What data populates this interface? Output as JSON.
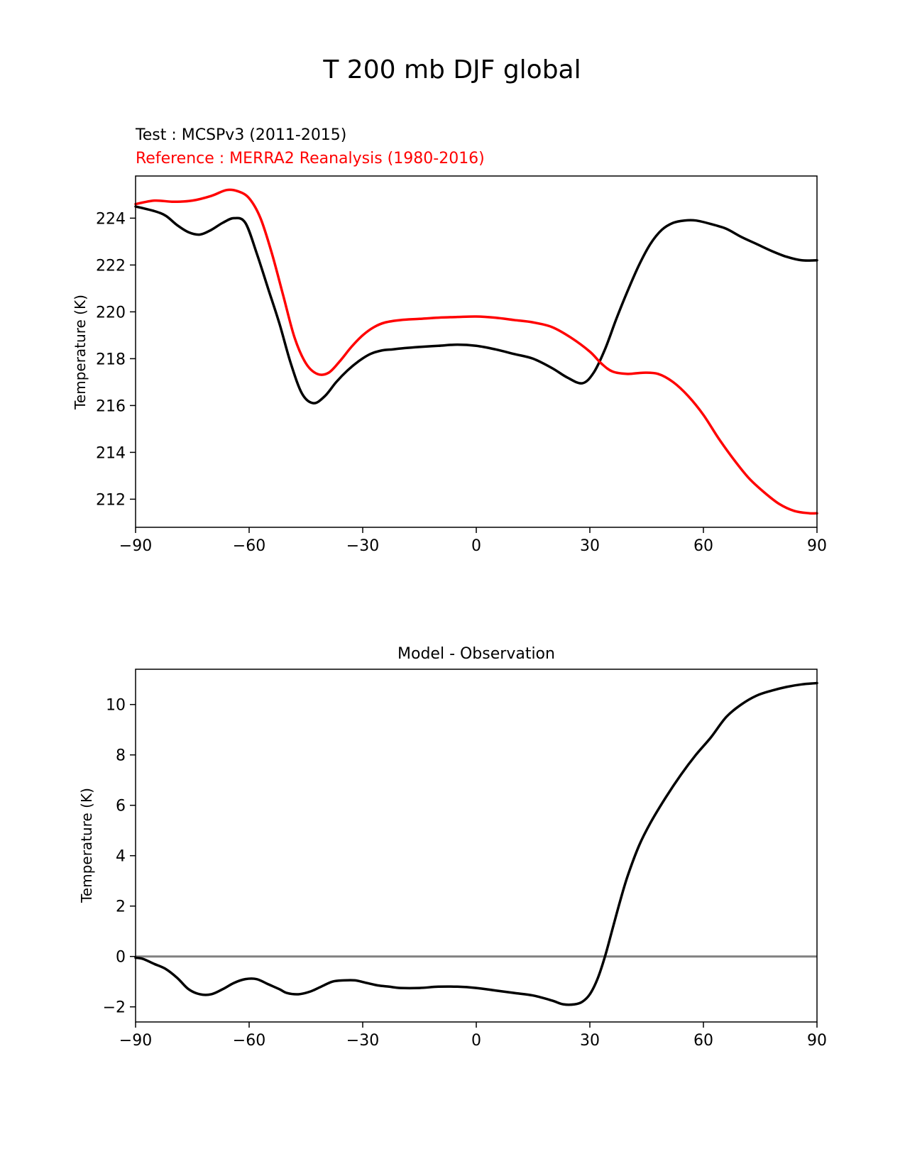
{
  "figure": {
    "title": "T 200 mb DJF global"
  },
  "colors": {
    "test": "#000000",
    "reference": "#ff0000",
    "zero_line": "#808080"
  },
  "chart_data": [
    {
      "type": "line",
      "title": "",
      "legend_lines": {
        "test": "Test : MCSPv3 (2011-2015)",
        "reference": "Reference : MERRA2 Reanalysis (1980-2016)"
      },
      "xlabel": "",
      "ylabel": "Temperature (K)",
      "xlim": [
        -90,
        90
      ],
      "ylim": [
        210.8,
        225.8
      ],
      "xticks": [
        -90,
        -60,
        -30,
        0,
        30,
        60,
        90
      ],
      "xtick_labels": [
        "−90",
        "−60",
        "−30",
        "0",
        "30",
        "60",
        "90"
      ],
      "yticks": [
        212,
        214,
        216,
        218,
        220,
        222,
        224
      ],
      "ytick_labels": [
        "212",
        "214",
        "216",
        "218",
        "220",
        "222",
        "224"
      ],
      "grid": false,
      "series": [
        {
          "name": "Test : MCSPv3 (2011-2015)",
          "color": "#000000",
          "x": [
            -90,
            -85,
            -82,
            -79,
            -76,
            -73,
            -70,
            -67,
            -64,
            -61,
            -58,
            -55,
            -52,
            -49,
            -46,
            -43,
            -40,
            -37,
            -34,
            -31,
            -28,
            -25,
            -22,
            -19,
            -15,
            -10,
            -5,
            0,
            5,
            10,
            15,
            20,
            24,
            28,
            31,
            34,
            37,
            40,
            43,
            46,
            49,
            52,
            55,
            58,
            62,
            66,
            70,
            74,
            78,
            82,
            86,
            90
          ],
          "y": [
            224.5,
            224.3,
            224.1,
            223.7,
            223.4,
            223.3,
            223.5,
            223.8,
            224.0,
            223.8,
            222.5,
            221.0,
            219.5,
            217.8,
            216.5,
            216.1,
            216.4,
            217.0,
            217.5,
            217.9,
            218.2,
            218.35,
            218.4,
            218.45,
            218.5,
            218.55,
            218.6,
            218.55,
            218.4,
            218.2,
            218.0,
            217.6,
            217.2,
            216.95,
            217.4,
            218.4,
            219.7,
            220.9,
            222.0,
            222.9,
            223.5,
            223.8,
            223.9,
            223.9,
            223.75,
            223.55,
            223.2,
            222.9,
            222.6,
            222.35,
            222.2,
            222.2
          ]
        },
        {
          "name": "Reference : MERRA2 Reanalysis (1980-2016)",
          "color": "#ff0000",
          "x": [
            -90,
            -85,
            -80,
            -75,
            -70,
            -66,
            -63,
            -60,
            -57,
            -54,
            -51,
            -48,
            -45,
            -42,
            -39,
            -36,
            -33,
            -30,
            -27,
            -24,
            -20,
            -15,
            -10,
            -5,
            0,
            5,
            10,
            15,
            20,
            25,
            30,
            33,
            36,
            40,
            44,
            48,
            52,
            56,
            60,
            64,
            68,
            72,
            76,
            80,
            84,
            88,
            90
          ],
          "y": [
            224.6,
            224.75,
            224.7,
            224.75,
            224.95,
            225.2,
            225.15,
            224.85,
            224.0,
            222.5,
            220.7,
            218.9,
            217.8,
            217.35,
            217.4,
            217.9,
            218.5,
            219.0,
            219.35,
            219.55,
            219.65,
            219.7,
            219.75,
            219.78,
            219.8,
            219.75,
            219.65,
            219.55,
            219.35,
            218.9,
            218.3,
            217.8,
            217.45,
            217.35,
            217.4,
            217.35,
            217.0,
            216.4,
            215.6,
            214.6,
            213.7,
            212.9,
            212.3,
            211.8,
            211.5,
            211.4,
            211.4
          ]
        }
      ]
    },
    {
      "type": "line",
      "title": "Model - Observation",
      "xlabel": "",
      "ylabel": "Temperature (K)",
      "xlim": [
        -90,
        90
      ],
      "ylim": [
        -2.6,
        11.4
      ],
      "xticks": [
        -90,
        -60,
        -30,
        0,
        30,
        60,
        90
      ],
      "xtick_labels": [
        "−90",
        "−60",
        "−30",
        "0",
        "30",
        "60",
        "90"
      ],
      "yticks": [
        -2,
        0,
        2,
        4,
        6,
        8,
        10
      ],
      "ytick_labels": [
        "−2",
        "0",
        "2",
        "4",
        "6",
        "8",
        "10"
      ],
      "grid": false,
      "zero_line": 0,
      "series": [
        {
          "name": "",
          "color": "#000000",
          "x": [
            -90,
            -88,
            -85,
            -82,
            -79,
            -76,
            -73,
            -70,
            -67,
            -64,
            -61,
            -58,
            -55,
            -52,
            -50,
            -47,
            -44,
            -41,
            -38,
            -35,
            -32,
            -29,
            -26,
            -23,
            -20,
            -15,
            -10,
            -5,
            0,
            5,
            10,
            15,
            20,
            23,
            26,
            28,
            30,
            32,
            34,
            36,
            38,
            40,
            43,
            46,
            50,
            54,
            58,
            62,
            66,
            70,
            74,
            78,
            82,
            86,
            90
          ],
          "y": [
            -0.05,
            -0.1,
            -0.3,
            -0.5,
            -0.85,
            -1.3,
            -1.5,
            -1.5,
            -1.3,
            -1.05,
            -0.9,
            -0.9,
            -1.1,
            -1.3,
            -1.45,
            -1.5,
            -1.4,
            -1.2,
            -1.0,
            -0.95,
            -0.95,
            -1.05,
            -1.15,
            -1.2,
            -1.25,
            -1.25,
            -1.2,
            -1.2,
            -1.25,
            -1.35,
            -1.45,
            -1.55,
            -1.75,
            -1.9,
            -1.9,
            -1.8,
            -1.5,
            -0.9,
            0.0,
            1.1,
            2.2,
            3.2,
            4.4,
            5.3,
            6.3,
            7.2,
            8.0,
            8.7,
            9.5,
            10.0,
            10.35,
            10.55,
            10.7,
            10.8,
            10.85
          ]
        }
      ]
    }
  ]
}
